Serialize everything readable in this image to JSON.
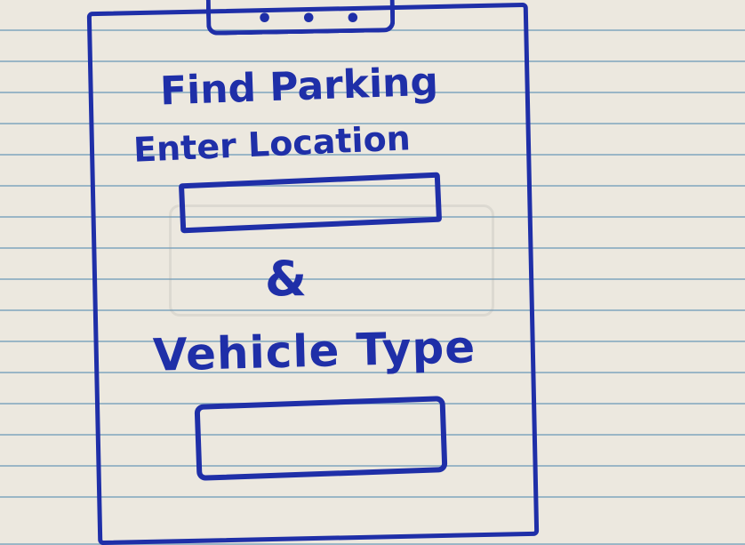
{
  "screen": {
    "title": "Find Parking",
    "dots": "• • •"
  },
  "location": {
    "label": "Enter Location",
    "value": ""
  },
  "connector": "&",
  "vehicle": {
    "label": "Vehicle Type",
    "value": ""
  },
  "colors": {
    "ink": "#1f2fa8",
    "paper": "#ece8df",
    "rule_line": "#9ab6c6"
  }
}
